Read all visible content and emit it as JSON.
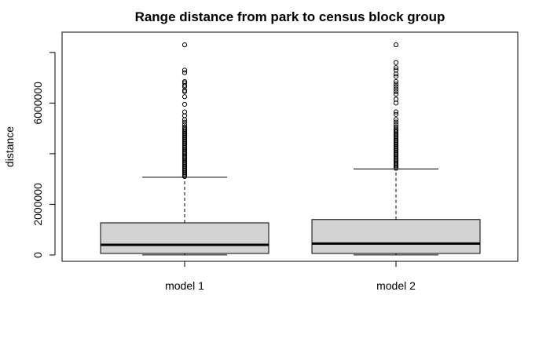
{
  "chart_data": {
    "type": "boxplot",
    "title": "Range distance from park to census block group",
    "xlabel": "",
    "ylabel": "distance",
    "categories": [
      "model 1",
      "model 2"
    ],
    "ylim": [
      -250000,
      8800000
    ],
    "yticks": [
      0,
      2000000,
      4000000,
      6000000,
      8000000
    ],
    "ytick_labels": [
      "0",
      "2000000",
      "",
      "6000000",
      ""
    ],
    "box_fill": "#d3d3d3",
    "grid": false,
    "series": [
      {
        "category": "model 1",
        "whisker_low": 0,
        "q1": 60000,
        "median": 400000,
        "q3": 1270000,
        "whisker_high": 3070000,
        "outliers": [
          3100000,
          3150000,
          3200000,
          3250000,
          3300000,
          3350000,
          3400000,
          3450000,
          3500000,
          3550000,
          3600000,
          3650000,
          3700000,
          3750000,
          3800000,
          3850000,
          3900000,
          3950000,
          4000000,
          4050000,
          4100000,
          4150000,
          4200000,
          4250000,
          4300000,
          4350000,
          4400000,
          4450000,
          4500000,
          4550000,
          4600000,
          4650000,
          4700000,
          4750000,
          4800000,
          4850000,
          4900000,
          4950000,
          5000000,
          5050000,
          5150000,
          5250000,
          5350000,
          5500000,
          5650000,
          5950000,
          6250000,
          6450000,
          6500000,
          6650000,
          6700000,
          6800000,
          6850000,
          7200000,
          7300000,
          8300000
        ]
      },
      {
        "category": "model 2",
        "whisker_low": 0,
        "q1": 60000,
        "median": 450000,
        "q3": 1400000,
        "whisker_high": 3400000,
        "outliers": [
          3420000,
          3470000,
          3520000,
          3570000,
          3620000,
          3670000,
          3720000,
          3770000,
          3820000,
          3870000,
          3920000,
          3970000,
          4020000,
          4070000,
          4120000,
          4170000,
          4220000,
          4270000,
          4320000,
          4370000,
          4420000,
          4470000,
          4520000,
          4570000,
          4620000,
          4670000,
          4720000,
          4770000,
          4820000,
          4870000,
          4920000,
          4970000,
          5050000,
          5150000,
          5250000,
          5350000,
          5550000,
          5650000,
          6000000,
          6150000,
          6350000,
          6450000,
          6550000,
          6650000,
          6750000,
          6850000,
          7050000,
          7150000,
          7300000,
          7400000,
          7600000,
          8300000
        ]
      }
    ]
  }
}
